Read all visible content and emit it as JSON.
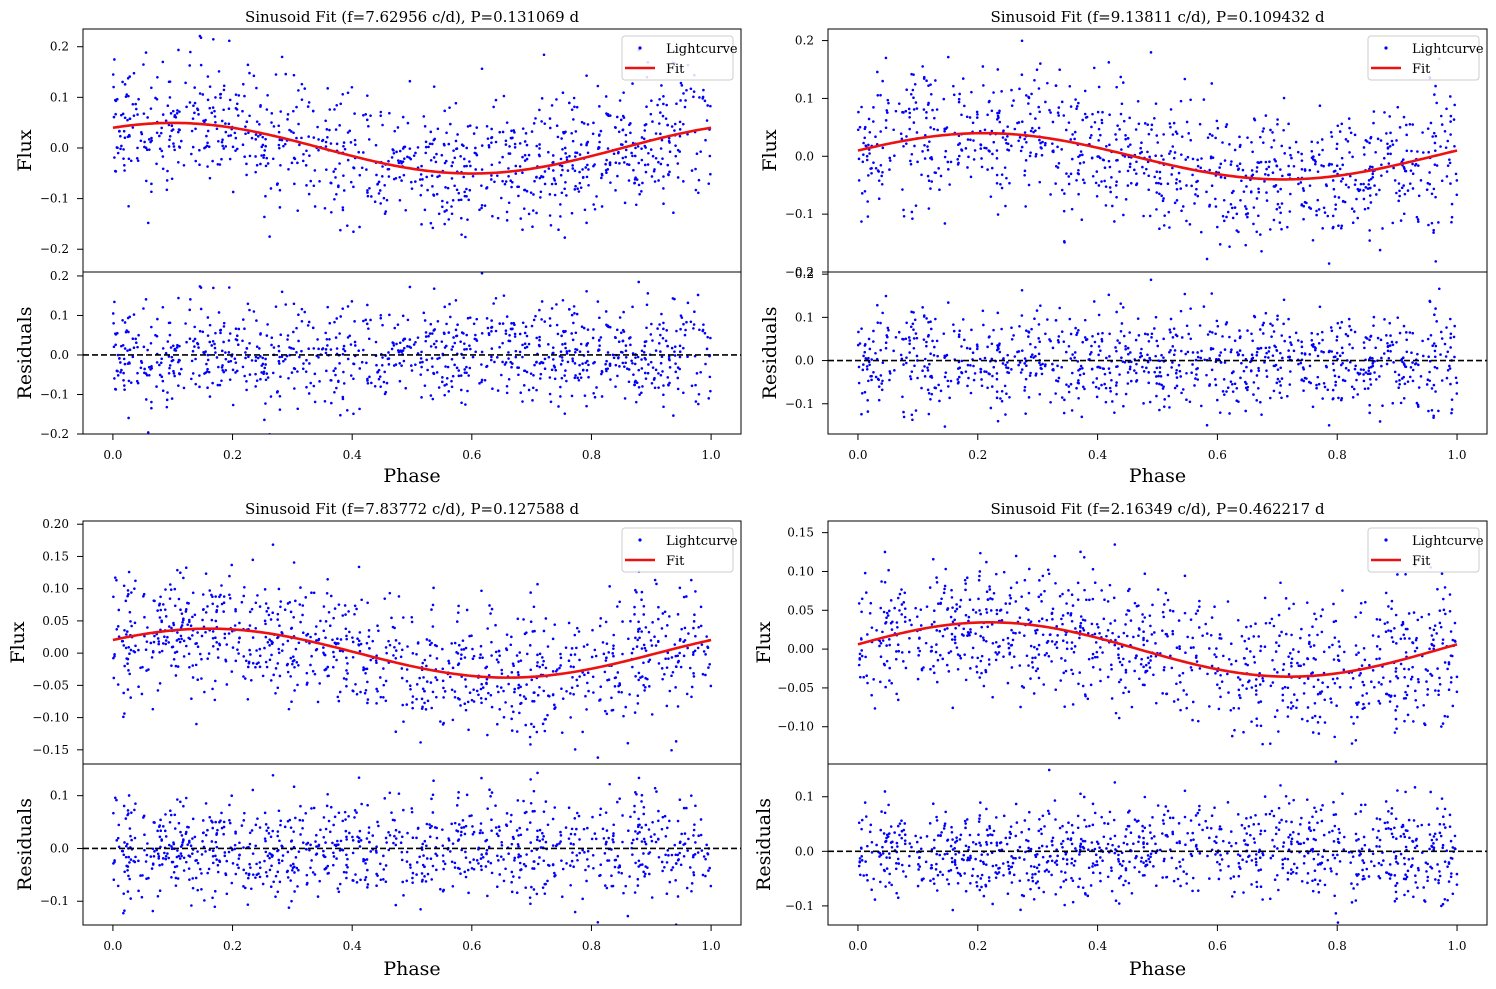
{
  "figure": {
    "legend_entries": [
      "Lightcurve",
      "Fit"
    ],
    "colors": {
      "points": "#0000ff",
      "fit": "#ee1111",
      "zero_line": "#000000",
      "axes": "#000000"
    }
  },
  "chart_data": [
    {
      "type": "scatter",
      "title": "Sinusoid Fit (f=7.62956 c/d), P=0.131069 d",
      "xlabel": "Phase",
      "top_ylabel": "Flux",
      "bottom_ylabel": "Residuals",
      "xlim": [
        -0.05,
        1.05
      ],
      "top_ylim": [
        -0.245,
        0.235
      ],
      "bottom_ylim": [
        -0.2,
        0.21
      ],
      "x_ticks": [
        "0.0",
        "0.2",
        "0.4",
        "0.6",
        "0.8",
        "1.0"
      ],
      "top_ticks": [
        {
          "v": 0.2,
          "label": "0.2"
        },
        {
          "v": 0.1,
          "label": "0.1"
        },
        {
          "v": 0.0,
          "label": "0.0"
        },
        {
          "v": -0.1,
          "label": "−0.1"
        },
        {
          "v": -0.2,
          "label": "−0.2"
        }
      ],
      "bottom_ticks": [
        {
          "v": 0.2,
          "label": "0.2"
        },
        {
          "v": 0.1,
          "label": "0.1"
        },
        {
          "v": 0.0,
          "label": "0.0"
        },
        {
          "v": -0.1,
          "label": "−0.1"
        },
        {
          "v": -0.2,
          "label": "−0.2"
        }
      ],
      "legend_position": "upper right",
      "series": [
        {
          "name": "Lightcurve",
          "style": "points",
          "fit_amplitude": 0.05,
          "fit_offset": -0.0005,
          "fit_peak_phase": 0.1,
          "scatter_sigma": 0.065,
          "n_points": 1000
        },
        {
          "name": "Fit",
          "style": "line",
          "fit_amplitude": 0.05,
          "fit_offset": -0.0005,
          "fit_peak_phase": 0.1
        }
      ],
      "residuals": {
        "mean": 0.0,
        "sigma": 0.065,
        "zero_line": 0.0
      }
    },
    {
      "type": "scatter",
      "title": "Sinusoid Fit (f=9.13811 c/d), P=0.109432 d",
      "xlabel": "Phase",
      "top_ylabel": "Flux",
      "bottom_ylabel": "Residuals",
      "xlim": [
        -0.05,
        1.05
      ],
      "top_ylim": [
        -0.2,
        0.22
      ],
      "bottom_ylim": [
        -0.17,
        0.205
      ],
      "x_ticks": [
        "0.0",
        "0.2",
        "0.4",
        "0.6",
        "0.8",
        "1.0"
      ],
      "top_ticks": [
        {
          "v": 0.2,
          "label": "0.2"
        },
        {
          "v": 0.1,
          "label": "0.1"
        },
        {
          "v": 0.0,
          "label": "0.0"
        },
        {
          "v": -0.1,
          "label": "−0.1"
        },
        {
          "v": -0.2,
          "label": "−0.2"
        }
      ],
      "bottom_ticks": [
        {
          "v": 0.2,
          "label": "0.2"
        },
        {
          "v": 0.1,
          "label": "0.1"
        },
        {
          "v": 0.0,
          "label": "0.0"
        },
        {
          "v": -0.1,
          "label": "−0.1"
        }
      ],
      "legend_position": "upper right",
      "series": [
        {
          "name": "Lightcurve",
          "style": "points",
          "fit_amplitude": 0.04,
          "fit_offset": 0.0,
          "fit_peak_phase": 0.21,
          "scatter_sigma": 0.06,
          "n_points": 1000
        },
        {
          "name": "Fit",
          "style": "line",
          "fit_amplitude": 0.04,
          "fit_offset": 0.0,
          "fit_peak_phase": 0.21
        }
      ],
      "residuals": {
        "mean": 0.0,
        "sigma": 0.06,
        "zero_line": 0.0
      }
    },
    {
      "type": "scatter",
      "title": "Sinusoid Fit (f=7.83772 c/d), P=0.127588 d",
      "xlabel": "Phase",
      "top_ylabel": "Flux",
      "bottom_ylabel": "Residuals",
      "xlim": [
        -0.05,
        1.05
      ],
      "top_ylim": [
        -0.172,
        0.205
      ],
      "bottom_ylim": [
        -0.145,
        0.16
      ],
      "x_ticks": [
        "0.0",
        "0.2",
        "0.4",
        "0.6",
        "0.8",
        "1.0"
      ],
      "top_ticks": [
        {
          "v": 0.2,
          "label": "0.20"
        },
        {
          "v": 0.15,
          "label": "0.15"
        },
        {
          "v": 0.1,
          "label": "0.10"
        },
        {
          "v": 0.05,
          "label": "0.05"
        },
        {
          "v": 0.0,
          "label": "0.00"
        },
        {
          "v": -0.05,
          "label": "−0.05"
        },
        {
          "v": -0.1,
          "label": "−0.10"
        },
        {
          "v": -0.15,
          "label": "−0.15"
        }
      ],
      "bottom_ticks": [
        {
          "v": 0.1,
          "label": "0.1"
        },
        {
          "v": 0.0,
          "label": "0.0"
        },
        {
          "v": -0.1,
          "label": "−0.1"
        }
      ],
      "legend_position": "upper right",
      "series": [
        {
          "name": "Lightcurve",
          "style": "points",
          "fit_amplitude": 0.038,
          "fit_offset": 0.0,
          "fit_peak_phase": 0.16,
          "scatter_sigma": 0.05,
          "n_points": 1000
        },
        {
          "name": "Fit",
          "style": "line",
          "fit_amplitude": 0.038,
          "fit_offset": 0.0,
          "fit_peak_phase": 0.16
        }
      ],
      "residuals": {
        "mean": 0.0,
        "sigma": 0.05,
        "zero_line": 0.0
      }
    },
    {
      "type": "scatter",
      "title": "Sinusoid Fit (f=2.16349 c/d), P=0.462217 d",
      "xlabel": "Phase",
      "top_ylabel": "Flux",
      "bottom_ylabel": "Residuals",
      "xlim": [
        -0.05,
        1.05
      ],
      "top_ylim": [
        -0.148,
        0.165
      ],
      "bottom_ylim": [
        -0.135,
        0.16
      ],
      "x_ticks": [
        "0.0",
        "0.2",
        "0.4",
        "0.6",
        "0.8",
        "1.0"
      ],
      "top_ticks": [
        {
          "v": 0.15,
          "label": "0.15"
        },
        {
          "v": 0.1,
          "label": "0.10"
        },
        {
          "v": 0.05,
          "label": "0.05"
        },
        {
          "v": 0.0,
          "label": "0.00"
        },
        {
          "v": -0.05,
          "label": "−0.05"
        },
        {
          "v": -0.1,
          "label": "−0.10"
        }
      ],
      "bottom_ticks": [
        {
          "v": 0.1,
          "label": "0.1"
        },
        {
          "v": 0.0,
          "label": "0.0"
        },
        {
          "v": -0.1,
          "label": "−0.1"
        }
      ],
      "legend_position": "upper right",
      "series": [
        {
          "name": "Lightcurve",
          "style": "points",
          "fit_amplitude": 0.035,
          "fit_offset": -0.0005,
          "fit_peak_phase": 0.22,
          "scatter_sigma": 0.045,
          "n_points": 1000
        },
        {
          "name": "Fit",
          "style": "line",
          "fit_amplitude": 0.035,
          "fit_offset": -0.0005,
          "fit_peak_phase": 0.22
        }
      ],
      "residuals": {
        "mean": 0.0,
        "sigma": 0.045,
        "zero_line": 0.0
      }
    }
  ]
}
